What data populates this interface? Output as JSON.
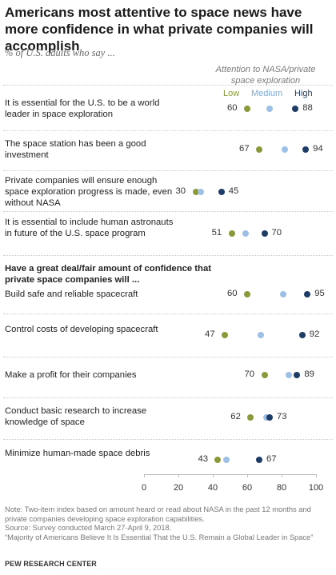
{
  "title": "Americans most attentive to space news have more confidence in what private companies will accomplish",
  "subtitle": "% of U.S. adults who say ...",
  "legend": {
    "title": "Attention to NASA/private space exploration",
    "low": "Low",
    "medium": "Medium",
    "high": "High"
  },
  "section_heading": "Have a great deal/fair amount of confidence that private space companies will ...",
  "colors": {
    "low": "#8a9a3a",
    "medium": "#9cc0e6",
    "high": "#1d3c66"
  },
  "chart_data": {
    "type": "scatter",
    "xlim": [
      0,
      100
    ],
    "ticks": [
      "0",
      "20",
      "40",
      "60",
      "80",
      "100"
    ],
    "series_names": [
      "Low",
      "Medium",
      "High"
    ],
    "rows": [
      {
        "label": "It is essential for the U.S. to be a world leader in space exploration",
        "low": 60,
        "medium": 73,
        "high": 88,
        "low_label": "60",
        "high_label": "88"
      },
      {
        "label": "The space station has been a good investment",
        "low": 67,
        "medium": 82,
        "high": 94,
        "low_label": "67",
        "high_label": "94"
      },
      {
        "label": "Private companies will ensure enough space exploration progress is made, even without NASA",
        "low": 30,
        "medium": 33,
        "high": 45,
        "low_label": "30",
        "high_label": "45"
      },
      {
        "label": "It is essential to include human astronauts in future of the U.S. space program",
        "low": 51,
        "medium": 59,
        "high": 70,
        "low_label": "51",
        "high_label": "70"
      },
      {
        "label": "Build safe and reliable spacecraft",
        "low": 60,
        "medium": 81,
        "high": 95,
        "low_label": "60",
        "high_label": "95"
      },
      {
        "label": "Control costs of developing spacecraft",
        "low": 47,
        "medium": 68,
        "high": 92,
        "low_label": "47",
        "high_label": "92"
      },
      {
        "label": "Make a profit for their companies",
        "low": 70,
        "medium": 84,
        "high": 89,
        "low_label": "70",
        "high_label": "89"
      },
      {
        "label": "Conduct basic research to increase knowledge of space",
        "low": 62,
        "medium": 71,
        "high": 73,
        "low_label": "62",
        "high_label": "73"
      },
      {
        "label": "Minimize human-made space debris",
        "low": 43,
        "medium": 48,
        "high": 67,
        "low_label": "43",
        "high_label": "67"
      }
    ]
  },
  "note": "Note: Two-item index based on amount heard or read about NASA in the past 12 months and private companies developing space exploration capabilities.",
  "source": "Source: Survey conducted March 27-April 9, 2018.",
  "report": "“Majority of Americans Believe It Is Essential That the U.S. Remain a Global Leader in Space”",
  "brand": "PEW RESEARCH CENTER"
}
